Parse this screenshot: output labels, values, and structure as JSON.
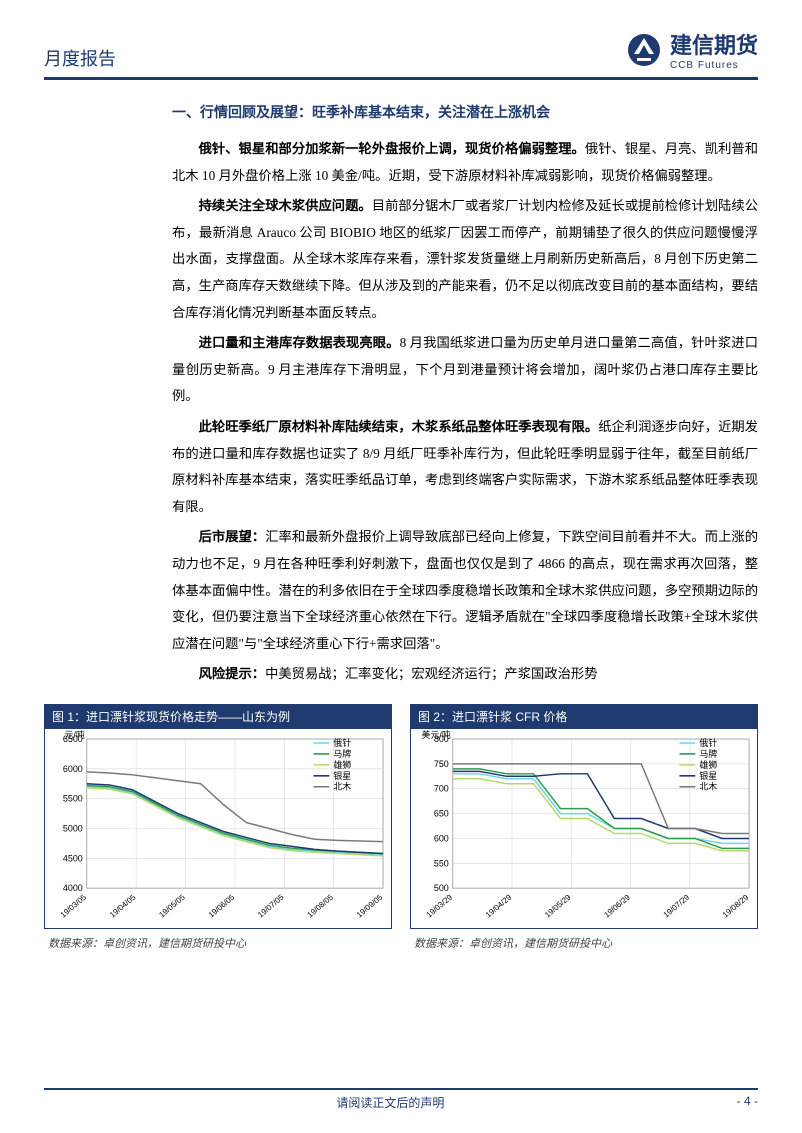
{
  "header": {
    "report_type": "月度报告",
    "brand_cn": "建信期货",
    "brand_en": "CCB Futures"
  },
  "section_title": "一、行情回顾及展望：旺季补库基本结束，关注潜在上涨机会",
  "paragraphs": [
    {
      "lead": "俄针、银星和部分加浆新一轮外盘报价上调，现货价格偏弱整理。",
      "rest": "俄针、银星、月亮、凯利普和北木 10 月外盘价格上涨 10 美金/吨。近期，受下游原材料补库减弱影响，现货价格偏弱整理。"
    },
    {
      "lead": "持续关注全球木浆供应问题。",
      "rest": "目前部分锯木厂或者浆厂计划内检修及延长或提前检修计划陆续公布，最新消息 Arauco 公司 BIOBIO 地区的纸浆厂因罢工而停产，前期铺垫了很久的供应问题慢慢浮出水面，支撑盘面。从全球木浆库存来看，漂针浆发货量继上月刷新历史新高后，8 月创下历史第二高，生产商库存天数继续下降。但从涉及到的产能来看，仍不足以彻底改变目前的基本面结构，要结合库存消化情况判断基本面反转点。"
    },
    {
      "lead": "进口量和主港库存数据表现亮眼。",
      "rest": "8 月我国纸浆进口量为历史单月进口量第二高值，针叶浆进口量创历史新高。9 月主港库存下滑明显，下个月到港量预计将会增加，阔叶浆仍占港口库存主要比例。"
    },
    {
      "lead": "此轮旺季纸厂原材料补库陆续结束，木浆系纸品整体旺季表现有限。",
      "rest": "纸企利润逐步向好，近期发布的进口量和库存数据也证实了 8/9 月纸厂旺季补库行为，但此轮旺季明显弱于往年，截至目前纸厂原材料补库基本结束，落实旺季纸品订单，考虑到终端客户实际需求，下游木浆系纸品整体旺季表现有限。"
    },
    {
      "lead": "后市展望：",
      "rest": "汇率和最新外盘报价上调导致底部已经向上修复，下跌空间目前看并不大。而上涨的动力也不足，9 月在各种旺季利好刺激下，盘面也仅仅是到了 4866 的高点，现在需求再次回落，整体基本面偏中性。潜在的利多依旧在于全球四季度稳增长政策和全球木浆供应问题，多空预期边际的变化，但仍要注意当下全球经济重心依然在下行。逻辑矛盾就在\"全球四季度稳增长政策+全球木浆供应潜在问题\"与\"全球经济重心下行+需求回落\"。"
    },
    {
      "lead": "风险提示：",
      "rest": "中美贸易战；汇率变化；宏观经济运行；产浆国政治形势"
    }
  ],
  "chart1": {
    "title": "图 1：进口漂针浆现货价格走势——山东为例",
    "ylabel": "元/吨",
    "ylim": [
      4000,
      6500
    ],
    "ytick_step": 500,
    "yticks": [
      "4000",
      "4500",
      "5000",
      "5500",
      "6000",
      "6500"
    ],
    "xticks": [
      "19/03/05",
      "19/04/05",
      "19/05/05",
      "19/06/05",
      "19/07/05",
      "19/08/05",
      "19/09/05"
    ],
    "legend": [
      "俄针",
      "马牌",
      "雄狮",
      "银星",
      "北木"
    ],
    "colors": {
      "俄针": "#6fd5e8",
      "马牌": "#2e9c4e",
      "雄狮": "#b5d96a",
      "银星": "#1f3a6e",
      "北木": "#7a7a7a"
    },
    "series": {
      "俄针": [
        5700,
        5680,
        5600,
        5400,
        5200,
        5050,
        4900,
        4800,
        4700,
        4650,
        4620,
        4600,
        4580,
        4560
      ],
      "马牌": [
        5720,
        5700,
        5620,
        5420,
        5220,
        5070,
        4920,
        4820,
        4720,
        4670,
        4640,
        4620,
        4600,
        4580
      ],
      "雄狮": [
        5680,
        5660,
        5580,
        5380,
        5180,
        5030,
        4880,
        4780,
        4680,
        4630,
        4600,
        4580,
        4560,
        4540
      ],
      "银星": [
        5750,
        5730,
        5650,
        5450,
        5250,
        5100,
        4950,
        4850,
        4750,
        4700,
        4650,
        4620,
        4600,
        4580
      ],
      "北木": [
        5950,
        5930,
        5900,
        5850,
        5800,
        5750,
        5400,
        5100,
        5000,
        4900,
        4820,
        4800,
        4790,
        4780
      ]
    },
    "grid_color": "#d9d9d9",
    "bg": "#ffffff",
    "line_w": 1.5,
    "source": "数据来源：卓创资讯，建信期货研投中心"
  },
  "chart2": {
    "title": "图 2：进口漂针浆 CFR 价格",
    "ylabel": "美元/吨",
    "ylim": [
      500,
      800
    ],
    "ytick_step": 50,
    "yticks": [
      "500",
      "550",
      "600",
      "650",
      "700",
      "750",
      "800"
    ],
    "xticks": [
      "19/03/29",
      "19/04/29",
      "19/05/29",
      "19/06/29",
      "19/07/29",
      "19/08/29"
    ],
    "legend": [
      "俄针",
      "马牌",
      "雄狮",
      "银星",
      "北木"
    ],
    "colors": {
      "俄针": "#6fd5e8",
      "马牌": "#2e9c4e",
      "雄狮": "#b5d96a",
      "银星": "#1f3a6e",
      "北木": "#7a7a7a"
    },
    "series": {
      "俄针": [
        730,
        730,
        720,
        720,
        650,
        650,
        620,
        620,
        600,
        600,
        590,
        590
      ],
      "马牌": [
        740,
        740,
        730,
        730,
        660,
        660,
        620,
        620,
        600,
        600,
        580,
        580
      ],
      "雄狮": [
        720,
        720,
        710,
        710,
        640,
        640,
        610,
        610,
        590,
        590,
        575,
        575
      ],
      "银星": [
        735,
        735,
        725,
        725,
        730,
        730,
        640,
        640,
        620,
        620,
        600,
        600
      ],
      "北木": [
        750,
        750,
        750,
        750,
        750,
        750,
        750,
        750,
        620,
        620,
        610,
        610
      ]
    },
    "grid_color": "#d9d9d9",
    "bg": "#ffffff",
    "line_w": 1.5,
    "source": "数据来源：卓创资讯，建信期货研投中心"
  },
  "footer": {
    "note": "请阅读正文后的声明",
    "page": "- 4 -"
  }
}
